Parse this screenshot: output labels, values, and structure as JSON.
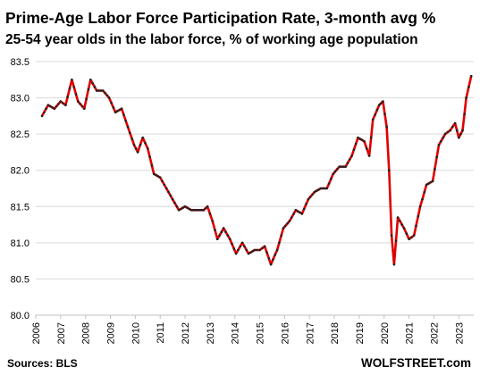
{
  "header": {
    "title": "Prime-Age Labor Force Participation  Rate, 3-month avg %",
    "subtitle": "25-54 year olds in the labor force, % of working age population"
  },
  "footer": {
    "source": "Sources: BLS",
    "brand": "WOLFSTREET.com"
  },
  "colors": {
    "line": "#e00000",
    "markers": "#222222",
    "grid": "#d9d9d9"
  },
  "chart_data": {
    "type": "line",
    "title": "Prime-Age Labor Force Participation  Rate, 3-month avg %",
    "subtitle": "25-54 year olds in the labor force, % of working age population",
    "ylim": [
      80.0,
      83.5
    ],
    "yticks": [
      "80.0",
      "80.5",
      "81.0",
      "81.5",
      "82.0",
      "82.5",
      "83.0",
      "83.5"
    ],
    "xlim": [
      2006,
      2023.6
    ],
    "xticks": [
      "2006",
      "2007",
      "2008",
      "2009",
      "2010",
      "2011",
      "2012",
      "2013",
      "2014",
      "2015",
      "2016",
      "2017",
      "2018",
      "2019",
      "2020",
      "2021",
      "2022",
      "2023"
    ],
    "grid": true,
    "legend": "none",
    "anchors": [
      [
        2006.25,
        82.75
      ],
      [
        2006.5,
        82.9
      ],
      [
        2006.75,
        82.85
      ],
      [
        2007.0,
        82.95
      ],
      [
        2007.2,
        82.9
      ],
      [
        2007.45,
        83.25
      ],
      [
        2007.7,
        82.95
      ],
      [
        2007.95,
        82.85
      ],
      [
        2008.2,
        83.25
      ],
      [
        2008.45,
        83.1
      ],
      [
        2008.7,
        83.1
      ],
      [
        2008.95,
        83.0
      ],
      [
        2009.2,
        82.8
      ],
      [
        2009.45,
        82.85
      ],
      [
        2009.7,
        82.6
      ],
      [
        2009.95,
        82.35
      ],
      [
        2010.1,
        82.25
      ],
      [
        2010.3,
        82.45
      ],
      [
        2010.5,
        82.3
      ],
      [
        2010.75,
        81.95
      ],
      [
        2011.0,
        81.9
      ],
      [
        2011.25,
        81.75
      ],
      [
        2011.5,
        81.6
      ],
      [
        2011.75,
        81.45
      ],
      [
        2012.0,
        81.5
      ],
      [
        2012.25,
        81.45
      ],
      [
        2012.5,
        81.45
      ],
      [
        2012.75,
        81.45
      ],
      [
        2012.9,
        81.5
      ],
      [
        2013.1,
        81.3
      ],
      [
        2013.3,
        81.05
      ],
      [
        2013.55,
        81.2
      ],
      [
        2013.8,
        81.05
      ],
      [
        2014.05,
        80.85
      ],
      [
        2014.3,
        81.0
      ],
      [
        2014.55,
        80.85
      ],
      [
        2014.8,
        80.9
      ],
      [
        2015.0,
        80.9
      ],
      [
        2015.2,
        80.95
      ],
      [
        2015.45,
        80.7
      ],
      [
        2015.7,
        80.9
      ],
      [
        2015.95,
        81.2
      ],
      [
        2016.2,
        81.3
      ],
      [
        2016.45,
        81.45
      ],
      [
        2016.7,
        81.4
      ],
      [
        2016.95,
        81.6
      ],
      [
        2017.2,
        81.7
      ],
      [
        2017.45,
        81.75
      ],
      [
        2017.7,
        81.75
      ],
      [
        2017.95,
        81.95
      ],
      [
        2018.2,
        82.05
      ],
      [
        2018.45,
        82.05
      ],
      [
        2018.7,
        82.2
      ],
      [
        2018.95,
        82.45
      ],
      [
        2019.2,
        82.4
      ],
      [
        2019.4,
        82.2
      ],
      [
        2019.55,
        82.7
      ],
      [
        2019.8,
        82.9
      ],
      [
        2019.95,
        82.95
      ],
      [
        2020.1,
        82.6
      ],
      [
        2020.2,
        82.0
      ],
      [
        2020.3,
        81.1
      ],
      [
        2020.4,
        80.7
      ],
      [
        2020.55,
        81.35
      ],
      [
        2020.8,
        81.2
      ],
      [
        2021.0,
        81.05
      ],
      [
        2021.2,
        81.1
      ],
      [
        2021.45,
        81.5
      ],
      [
        2021.7,
        81.8
      ],
      [
        2021.95,
        81.85
      ],
      [
        2022.2,
        82.35
      ],
      [
        2022.45,
        82.5
      ],
      [
        2022.65,
        82.55
      ],
      [
        2022.85,
        82.65
      ],
      [
        2023.0,
        82.45
      ],
      [
        2023.15,
        82.55
      ],
      [
        2023.3,
        83.0
      ],
      [
        2023.5,
        83.3
      ]
    ]
  }
}
